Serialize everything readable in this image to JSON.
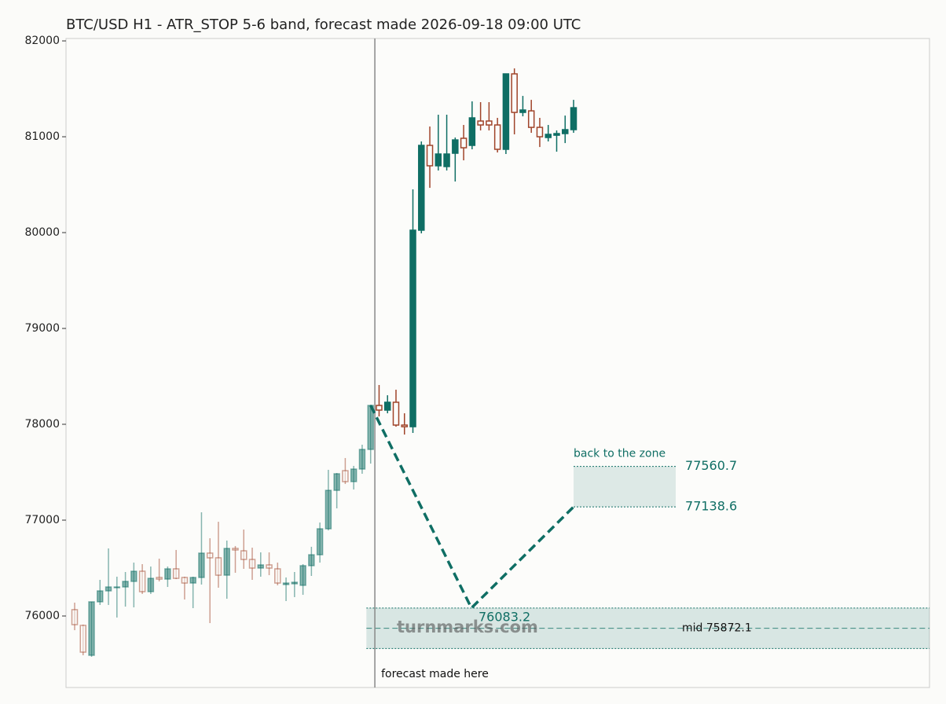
{
  "chart_data": {
    "type": "candlestick",
    "title": "BTC/USD H1 - ATR_STOP 5-6 band, forecast made 2026-09-18 09:00 UTC",
    "ylim": [
      75254,
      82025
    ],
    "yticks": [
      76000,
      77000,
      78000,
      79000,
      80000,
      81000,
      82000
    ],
    "grid": false,
    "up_color": "#0f6e64",
    "down_color": "#a0442a",
    "series": [
      {
        "open": [
          76066,
          75902,
          75590,
          76148,
          76262,
          76295,
          76303,
          76361,
          76467,
          76254,
          76402,
          76385,
          76492,
          76402,
          76344,
          76402,
          76656,
          76607,
          76426,
          76705,
          76680,
          76590,
          76500,
          76533,
          76492,
          76328,
          76336,
          76320,
          76525,
          76639,
          76910,
          77311,
          77516,
          77402,
          77533,
          77738
        ],
        "high": [
          76139,
          75910,
          76148,
          76377,
          76705,
          76410,
          76459,
          76557,
          76541,
          76516,
          76598,
          76516,
          76689,
          76410,
          76410,
          77082,
          76811,
          76983,
          76787,
          76730,
          76902,
          76713,
          76664,
          76664,
          76557,
          76402,
          76459,
          76541,
          76722,
          76975,
          77525,
          77492,
          77648,
          77566,
          77787,
          78205
        ],
        "low": [
          75852,
          75590,
          75574,
          76115,
          76115,
          75984,
          76098,
          76090,
          76230,
          76230,
          76361,
          76303,
          76385,
          76172,
          76082,
          76328,
          75926,
          76295,
          76180,
          76451,
          76492,
          76377,
          76410,
          76426,
          76320,
          76156,
          76197,
          76221,
          76418,
          76557,
          76893,
          77123,
          77377,
          77320,
          77484,
          77590
        ],
        "close": [
          75910,
          75623,
          76148,
          76262,
          76303,
          76303,
          76361,
          76467,
          76254,
          76393,
          76385,
          76492,
          76393,
          76344,
          76402,
          76656,
          76607,
          76426,
          76705,
          76689,
          76590,
          76500,
          76533,
          76500,
          76344,
          76344,
          76352,
          76525,
          76639,
          76910,
          77311,
          77484,
          77402,
          77533,
          77738,
          78197
        ]
      },
      {
        "open": [
          78197,
          78148,
          78230,
          77992,
          77975,
          80025,
          80910,
          80697,
          80689,
          80828,
          80984,
          80910,
          81164,
          81164,
          81123,
          80869,
          81656,
          81254,
          81270,
          81098,
          80992,
          81016,
          81033,
          81074
        ],
        "high": [
          78410,
          78303,
          78361,
          78115,
          80451,
          80951,
          81107,
          81230,
          81230,
          80992,
          81123,
          81369,
          81361,
          81361,
          81197,
          81656,
          81713,
          81426,
          81385,
          81197,
          81123,
          81066,
          81221,
          81385
        ],
        "low": [
          78082,
          78115,
          77975,
          77893,
          77910,
          79992,
          80467,
          80648,
          80648,
          80533,
          80754,
          80869,
          81066,
          81066,
          80836,
          80820,
          81025,
          81213,
          81041,
          80893,
          80951,
          80844,
          80934,
          81041
        ],
        "close": [
          78148,
          78230,
          77992,
          77975,
          80025,
          80910,
          80697,
          80820,
          80820,
          80967,
          80885,
          81197,
          81123,
          81123,
          80869,
          81656,
          81254,
          81279,
          81098,
          81000,
          81025,
          81033,
          81074,
          81303
        ]
      }
    ],
    "forecast_label": "forecast made here",
    "forecast": {
      "values": [
        78197,
        76083.2,
        77138.6
      ],
      "color": "#0f6e64"
    },
    "target_zone": {
      "label": "back to the zone",
      "high": 77560.7,
      "low": 77138.6
    },
    "band": {
      "high": 76083.2,
      "low": 75661.0,
      "mid": {
        "value": 75872.1,
        "label": "mid 75872.1"
      }
    },
    "watermark": "turnmarks.com"
  }
}
